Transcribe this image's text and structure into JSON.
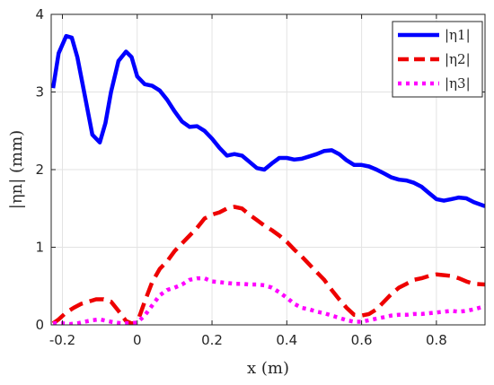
{
  "chart_data": {
    "type": "line",
    "title": "",
    "xlabel": "x (m)",
    "ylabel": "|ηn| (mm)",
    "xlim": [
      -0.23,
      0.93
    ],
    "ylim": [
      0,
      4
    ],
    "xticks": [
      -0.2,
      0,
      0.2,
      0.4,
      0.6,
      0.8
    ],
    "yticks": [
      0,
      1,
      2,
      3,
      4
    ],
    "xtick_labels": [
      "-0.2",
      "0",
      "0.2",
      "0.4",
      "0.6",
      "0.8"
    ],
    "ytick_labels": [
      "0",
      "1",
      "2",
      "3",
      "4"
    ],
    "grid": true,
    "legend_position": "top-right",
    "series": [
      {
        "name": "|η1|",
        "color": "#0000ff",
        "style": "solid",
        "x": [
          -0.225,
          -0.21,
          -0.19,
          -0.175,
          -0.16,
          -0.14,
          -0.12,
          -0.1,
          -0.085,
          -0.07,
          -0.05,
          -0.03,
          -0.015,
          0.0,
          0.02,
          0.04,
          0.06,
          0.08,
          0.1,
          0.12,
          0.14,
          0.16,
          0.18,
          0.2,
          0.22,
          0.24,
          0.26,
          0.28,
          0.3,
          0.32,
          0.34,
          0.36,
          0.38,
          0.4,
          0.42,
          0.44,
          0.46,
          0.48,
          0.5,
          0.52,
          0.54,
          0.56,
          0.58,
          0.6,
          0.62,
          0.64,
          0.66,
          0.68,
          0.7,
          0.72,
          0.74,
          0.76,
          0.78,
          0.8,
          0.82,
          0.84,
          0.86,
          0.88,
          0.9,
          0.93
        ],
        "y": [
          3.05,
          3.5,
          3.72,
          3.7,
          3.45,
          2.95,
          2.45,
          2.35,
          2.6,
          3.0,
          3.4,
          3.52,
          3.45,
          3.2,
          3.1,
          3.08,
          3.02,
          2.9,
          2.75,
          2.62,
          2.55,
          2.56,
          2.5,
          2.4,
          2.28,
          2.18,
          2.2,
          2.18,
          2.1,
          2.02,
          2.0,
          2.08,
          2.15,
          2.15,
          2.13,
          2.14,
          2.17,
          2.2,
          2.24,
          2.25,
          2.2,
          2.12,
          2.06,
          2.06,
          2.04,
          2.0,
          1.95,
          1.9,
          1.87,
          1.86,
          1.83,
          1.78,
          1.7,
          1.62,
          1.6,
          1.62,
          1.64,
          1.63,
          1.58,
          1.53
        ]
      },
      {
        "name": "|η2|",
        "color": "#ee0000",
        "style": "dashed",
        "x": [
          -0.225,
          -0.21,
          -0.19,
          -0.17,
          -0.15,
          -0.13,
          -0.11,
          -0.09,
          -0.07,
          -0.05,
          -0.03,
          -0.015,
          0.0,
          0.02,
          0.04,
          0.06,
          0.08,
          0.1,
          0.12,
          0.14,
          0.16,
          0.18,
          0.2,
          0.22,
          0.24,
          0.26,
          0.28,
          0.3,
          0.32,
          0.34,
          0.36,
          0.38,
          0.4,
          0.42,
          0.44,
          0.46,
          0.48,
          0.5,
          0.52,
          0.54,
          0.56,
          0.58,
          0.6,
          0.62,
          0.64,
          0.66,
          0.68,
          0.7,
          0.72,
          0.74,
          0.76,
          0.78,
          0.8,
          0.82,
          0.84,
          0.86,
          0.88,
          0.9,
          0.93
        ],
        "y": [
          0.02,
          0.07,
          0.16,
          0.22,
          0.27,
          0.3,
          0.33,
          0.33,
          0.3,
          0.18,
          0.05,
          0.02,
          0.03,
          0.3,
          0.55,
          0.72,
          0.82,
          0.95,
          1.05,
          1.15,
          1.25,
          1.37,
          1.42,
          1.45,
          1.5,
          1.52,
          1.5,
          1.42,
          1.35,
          1.28,
          1.22,
          1.15,
          1.07,
          0.97,
          0.88,
          0.78,
          0.68,
          0.58,
          0.45,
          0.33,
          0.22,
          0.13,
          0.12,
          0.14,
          0.2,
          0.3,
          0.4,
          0.48,
          0.53,
          0.58,
          0.6,
          0.63,
          0.65,
          0.64,
          0.63,
          0.6,
          0.56,
          0.53,
          0.52
        ]
      },
      {
        "name": "|η3|",
        "color": "#ff00ff",
        "style": "dotted",
        "x": [
          -0.225,
          -0.2,
          -0.18,
          -0.16,
          -0.14,
          -0.12,
          -0.1,
          -0.08,
          -0.06,
          -0.04,
          -0.02,
          0.0,
          0.02,
          0.04,
          0.06,
          0.08,
          0.1,
          0.12,
          0.14,
          0.16,
          0.18,
          0.2,
          0.22,
          0.24,
          0.26,
          0.28,
          0.3,
          0.32,
          0.34,
          0.36,
          0.38,
          0.4,
          0.42,
          0.44,
          0.46,
          0.48,
          0.5,
          0.52,
          0.54,
          0.56,
          0.58,
          0.6,
          0.62,
          0.64,
          0.66,
          0.68,
          0.7,
          0.72,
          0.74,
          0.76,
          0.78,
          0.8,
          0.82,
          0.84,
          0.86,
          0.88,
          0.9,
          0.93
        ],
        "y": [
          0.02,
          0.02,
          0.01,
          0.02,
          0.04,
          0.06,
          0.07,
          0.05,
          0.03,
          0.02,
          0.02,
          0.03,
          0.12,
          0.25,
          0.38,
          0.45,
          0.48,
          0.52,
          0.58,
          0.6,
          0.6,
          0.56,
          0.55,
          0.54,
          0.53,
          0.53,
          0.52,
          0.52,
          0.51,
          0.48,
          0.42,
          0.35,
          0.27,
          0.22,
          0.2,
          0.17,
          0.15,
          0.12,
          0.09,
          0.06,
          0.04,
          0.04,
          0.06,
          0.08,
          0.1,
          0.12,
          0.13,
          0.13,
          0.14,
          0.14,
          0.15,
          0.16,
          0.17,
          0.18,
          0.17,
          0.18,
          0.2,
          0.24
        ]
      }
    ]
  }
}
